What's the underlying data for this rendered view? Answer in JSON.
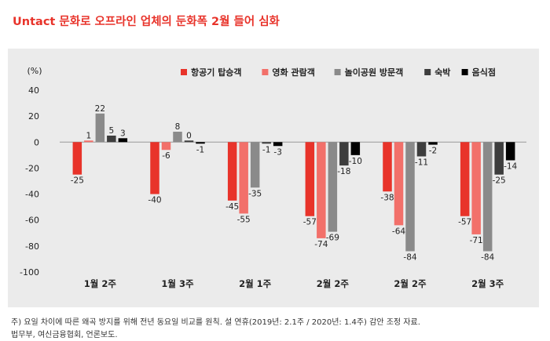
{
  "title": "Untact 문화로 오프라인 업체의 둔화폭 2월 들어 심화",
  "footnotes": [
    "주) 요일 차이에 따른 왜곡 방지를 위해 전년 동요일 비교를 원칙. 설 연휴(2019년: 2.1주 / 2020년: 1.4주) 감안 조정 자료.",
    "법무부, 여신금융협회, 언론보도."
  ],
  "chart_data": {
    "type": "bar",
    "unit_label": "(%)",
    "categories": [
      "1월 2주",
      "1월 3주",
      "2월 1주",
      "2월 2주",
      "2월 2주",
      "2월 3주"
    ],
    "ylim": [
      -100,
      40
    ],
    "yticks": [
      40,
      20,
      0,
      -20,
      -40,
      -60,
      -80,
      -100
    ],
    "legend_position": "top-right",
    "series": [
      {
        "name": "항공기 탑승객",
        "color": "#e8332a",
        "values": [
          -25,
          -40,
          -45,
          -57,
          -38,
          -57
        ]
      },
      {
        "name": "영화 관람객",
        "color": "#f2706a",
        "values": [
          1,
          -6,
          -55,
          -74,
          -64,
          -71
        ]
      },
      {
        "name": "놀이공원 방문객",
        "color": "#8a8a8a",
        "values": [
          22,
          8,
          -35,
          -69,
          -84,
          -84
        ]
      },
      {
        "name": "숙박",
        "color": "#3d3d3d",
        "values": [
          5,
          0,
          -1,
          -18,
          -11,
          -25
        ]
      },
      {
        "name": "음식점",
        "color": "#000000",
        "values": [
          3,
          -1,
          -3,
          -10,
          -2,
          -14
        ]
      }
    ]
  }
}
